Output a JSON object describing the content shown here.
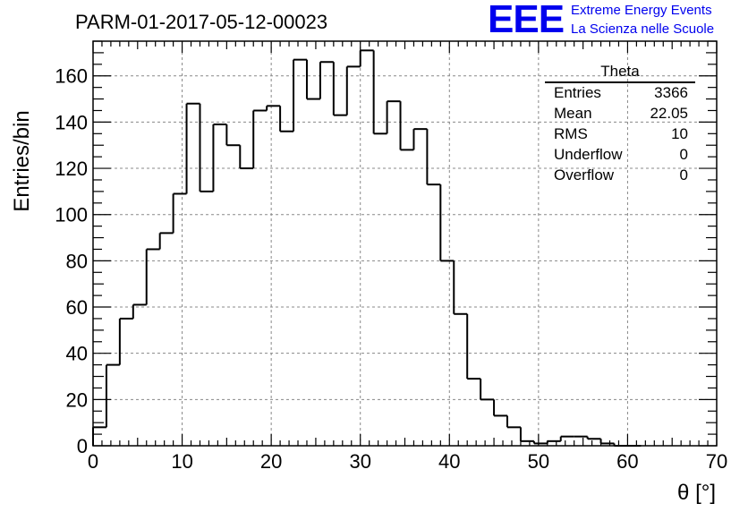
{
  "header": {
    "title": "PARM-01-2017-05-12-00023",
    "logo_text": "EEE",
    "logo_line1": "Extreme Energy Events",
    "logo_line2": "La Scienza nelle Scuole"
  },
  "stats_box": {
    "name": "Theta",
    "rows": [
      {
        "label": "Entries",
        "value": "3366"
      },
      {
        "label": "Mean",
        "value": "22.05"
      },
      {
        "label": "RMS",
        "value": "10"
      },
      {
        "label": "Underflow",
        "value": "0"
      },
      {
        "label": "Overflow",
        "value": "0"
      }
    ]
  },
  "colors": {
    "line": "#000000",
    "grid": "#888888",
    "logo": "#0000ee"
  },
  "chart_data": {
    "type": "histogram",
    "xlabel": "θ [°]",
    "ylabel": "Entries/bin",
    "xlim": [
      0,
      70
    ],
    "ylim": [
      0,
      175
    ],
    "x_ticks": [
      0,
      10,
      20,
      30,
      40,
      50,
      60,
      70
    ],
    "y_ticks": [
      0,
      20,
      40,
      60,
      80,
      100,
      120,
      140,
      160
    ],
    "grid": true,
    "bin_width": 1.5,
    "bin_start": 0,
    "values": [
      8,
      35,
      55,
      61,
      85,
      92,
      109,
      148,
      110,
      139,
      130,
      120,
      145,
      147,
      136,
      167,
      150,
      166,
      143,
      164,
      171,
      135,
      149,
      128,
      137,
      113,
      80,
      57,
      29,
      20,
      13,
      8,
      2,
      1,
      2,
      4,
      4,
      3,
      1,
      0,
      0
    ]
  }
}
